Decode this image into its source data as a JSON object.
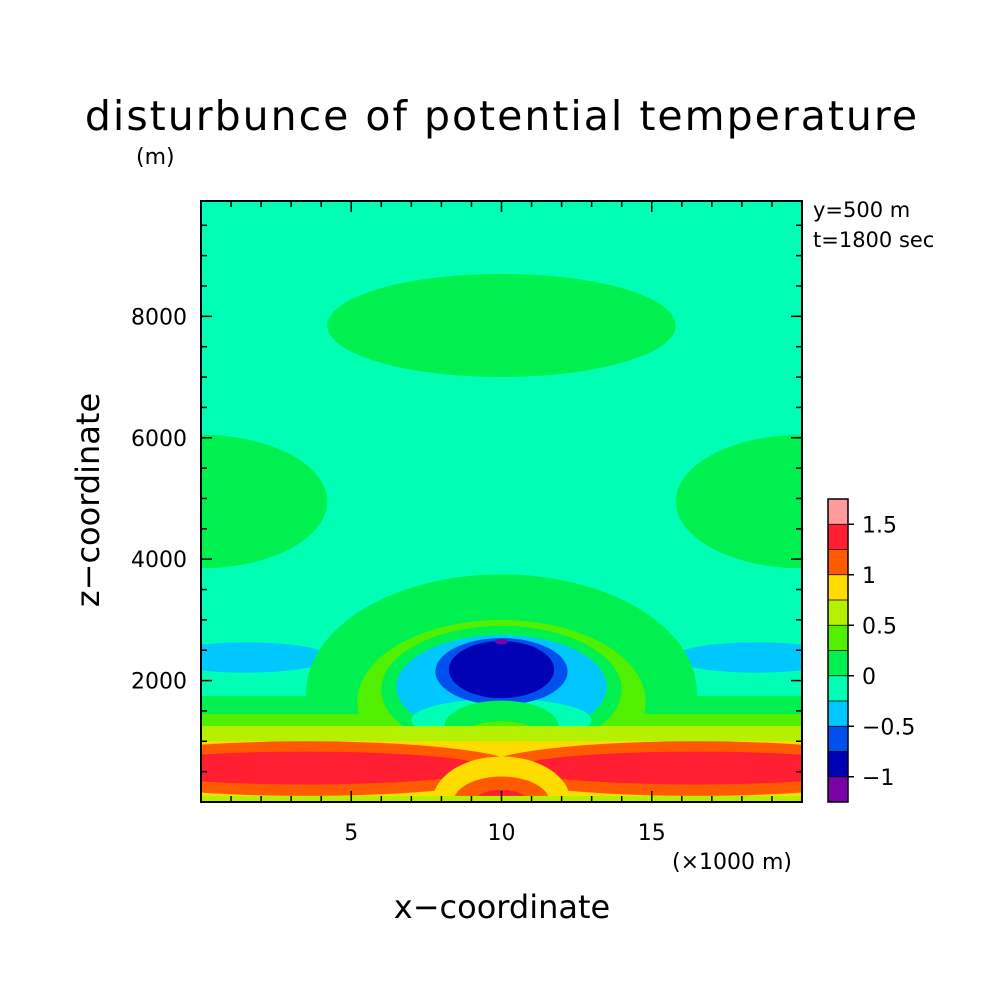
{
  "chart_data": {
    "type": "heatmap",
    "title": "disturbunce of potential temperature",
    "xlabel": "x−coordinate",
    "ylabel": "z−coordinate",
    "x_unit": "(×1000 m)",
    "y_unit": "(m)",
    "annotations": [
      "y=500 m",
      "t=1800 sec"
    ],
    "xlim": [
      0,
      20
    ],
    "ylim": [
      0,
      9900
    ],
    "x_ticks": [
      5,
      10,
      15
    ],
    "x_tick_labels": [
      "5",
      "10",
      "15"
    ],
    "y_ticks": [
      2000,
      4000,
      6000,
      8000
    ],
    "y_tick_labels": [
      "2000",
      "4000",
      "6000",
      "8000"
    ],
    "colorbar": {
      "levels": [
        -1.125,
        -1,
        -0.75,
        -0.5,
        -0.25,
        0,
        0.25,
        0.5,
        0.75,
        1,
        1.25,
        1.5,
        1.625
      ],
      "colors": [
        "#7a00a8",
        "#0000b4",
        "#0050f0",
        "#00c8ff",
        "#00ffb4",
        "#00f050",
        "#50f000",
        "#b4f000",
        "#ffdc00",
        "#ff5a00",
        "#ff1e32",
        "#ff9b9b"
      ],
      "tick_values": [
        -1,
        -0.5,
        0,
        0.5,
        1,
        1.5
      ],
      "tick_labels": [
        "−1",
        "−0.5",
        "0",
        "0.5",
        "1",
        "1.5"
      ]
    },
    "background_value": -0.1,
    "features": [
      {
        "kind": "ellipse",
        "value": 0.1,
        "cx": 10,
        "cz": 7850,
        "rx": 5.8,
        "rz": 850
      },
      {
        "kind": "ellipse",
        "value": 0.1,
        "cx": 0,
        "cz": 4950,
        "rx": 4.2,
        "rz": 1100
      },
      {
        "kind": "ellipse",
        "value": 0.1,
        "cx": 20,
        "cz": 4950,
        "rx": 4.2,
        "rz": 1100
      },
      {
        "kind": "ellipse",
        "value": -0.3,
        "cx": 1.5,
        "cz": 2380,
        "rx": 2.8,
        "rz": 250
      },
      {
        "kind": "ellipse",
        "value": -0.3,
        "cx": 18.5,
        "cz": 2380,
        "rx": 2.8,
        "rz": 250
      },
      {
        "kind": "layer",
        "value": 0.1,
        "z_top": 1750
      },
      {
        "kind": "ellipse",
        "value": 0.1,
        "cx": 10,
        "cz": 1800,
        "rx": 6.5,
        "rz": 1950
      },
      {
        "kind": "layer",
        "value": 0.4,
        "z_top": 1450
      },
      {
        "kind": "ellipse",
        "value": 0.4,
        "cx": 10,
        "cz": 1650,
        "rx": 4.8,
        "rz": 1350
      },
      {
        "kind": "ellipse",
        "value": 0.1,
        "cx": 10,
        "cz": 1850,
        "rx": 4.0,
        "rz": 1050
      },
      {
        "kind": "ellipse",
        "value": -0.3,
        "cx": 10,
        "cz": 1900,
        "rx": 3.5,
        "rz": 850
      },
      {
        "kind": "ellipse",
        "value": -0.1,
        "cx": 10,
        "cz": 1350,
        "rx": 3.0,
        "rz": 350
      },
      {
        "kind": "ellipse",
        "value": -0.6,
        "cx": 10,
        "cz": 2150,
        "rx": 2.2,
        "rz": 550
      },
      {
        "kind": "ellipse",
        "value": -0.9,
        "cx": 10,
        "cz": 2180,
        "rx": 1.75,
        "rz": 470
      },
      {
        "kind": "ellipse",
        "value": -1.06,
        "cx": 10,
        "cz": 2640,
        "rx": 0.22,
        "rz": 45
      },
      {
        "kind": "ellipse",
        "value": 0.1,
        "cx": 10,
        "cz": 1250,
        "rx": 1.9,
        "rz": 420
      },
      {
        "kind": "ellipse",
        "value": 0.4,
        "cx": 10,
        "cz": 1000,
        "rx": 1.5,
        "rz": 330
      },
      {
        "kind": "layer",
        "value": 0.6,
        "z_top": 1250
      },
      {
        "kind": "band",
        "value": 0.8,
        "z_bottom": 100,
        "z_top": 1000
      },
      {
        "kind": "ellipse",
        "value": 1.1,
        "cx": 3.5,
        "cz": 550,
        "rx": 7.2,
        "rz": 450
      },
      {
        "kind": "ellipse",
        "value": 1.1,
        "cx": 16.5,
        "cz": 550,
        "rx": 7.2,
        "rz": 450
      },
      {
        "kind": "ellipse",
        "value": 1.4,
        "cx": 3.5,
        "cz": 560,
        "rx": 6.0,
        "rz": 270
      },
      {
        "kind": "ellipse",
        "value": 1.4,
        "cx": 16.5,
        "cz": 560,
        "rx": 6.0,
        "rz": 270
      },
      {
        "kind": "ellipse",
        "value": 0.8,
        "cx": 10,
        "cz": 0,
        "rx": 2.3,
        "rz": 750
      },
      {
        "kind": "ellipse",
        "value": 1.1,
        "cx": 10,
        "cz": 0,
        "rx": 1.6,
        "rz": 420
      },
      {
        "kind": "ellipse",
        "value": 1.4,
        "cx": 10,
        "cz": 0,
        "rx": 0.9,
        "rz": 200
      },
      {
        "kind": "band",
        "value": 0.6,
        "z_bottom": 0,
        "z_top": 100
      }
    ]
  }
}
